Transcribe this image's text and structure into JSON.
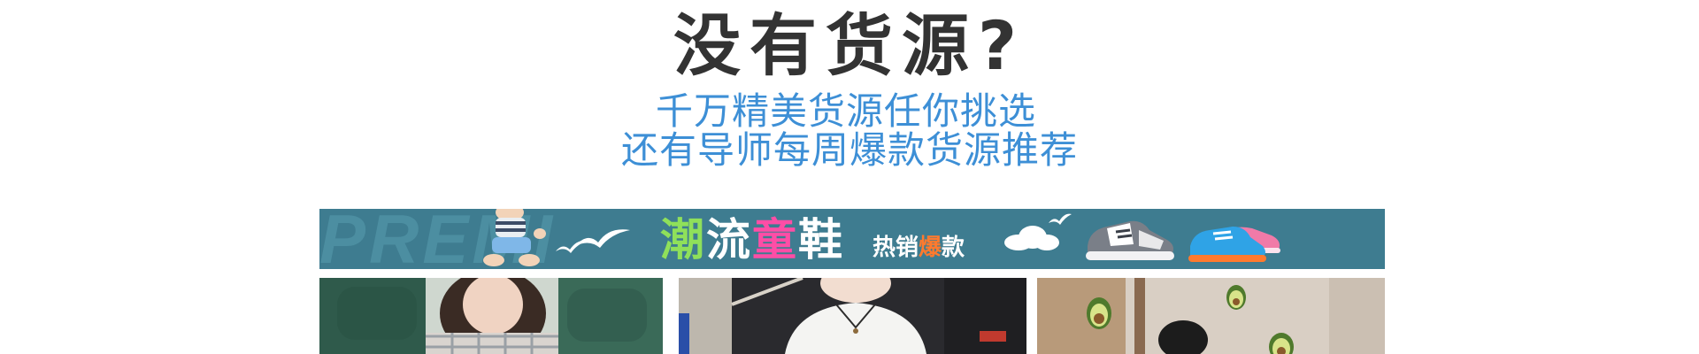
{
  "header": {
    "title": "没有货源?",
    "subtitle_line1": "千万精美货源任你挑选",
    "subtitle_line2": "还有导师每周爆款货源推荐"
  },
  "banner": {
    "ghost_text": "PREMI",
    "headline_chars": [
      "潮",
      "流",
      "童",
      "鞋"
    ],
    "tag_prefix": "热销",
    "tag_highlight": "爆",
    "tag_suffix": "款"
  },
  "colors": {
    "title": "#333333",
    "subtitle": "#3d8fd6",
    "banner_bg": "#3e7c90"
  },
  "products": [
    {
      "name": "plaid-top-model-photo"
    },
    {
      "name": "white-shirt-model-photo"
    },
    {
      "name": "avocado-decor-photo"
    }
  ]
}
